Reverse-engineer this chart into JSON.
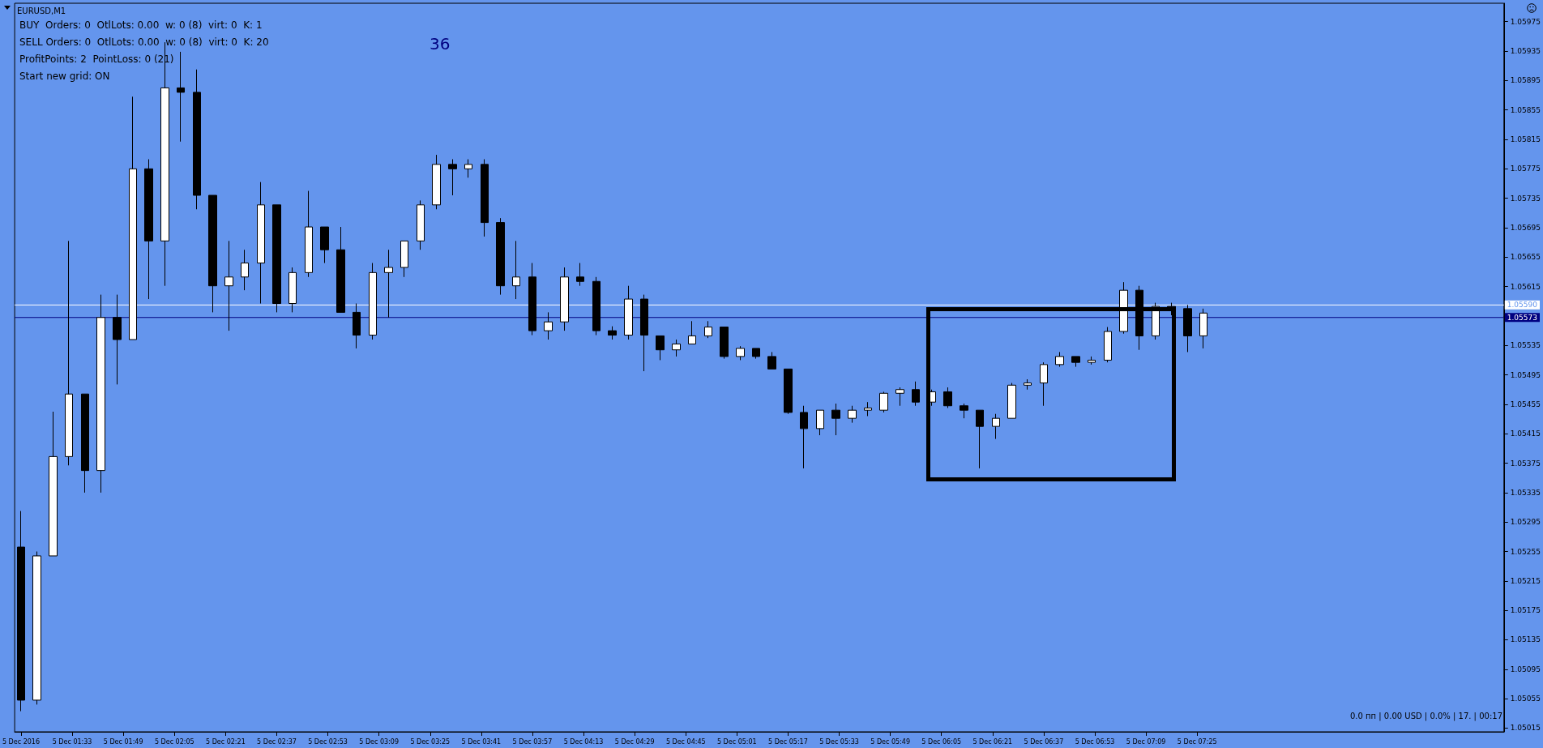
{
  "chart_data": {
    "type": "candlestick",
    "title": "EURUSD,M1",
    "annotations": [
      "BUY  Orders: 0  OtlLots: 0.00  w: 0 (8)  virt: 0  K: 1",
      "SELL Orders: 0  OtlLots: 0.00  w: 0 (8)  virt: 0  K: 20",
      "ProfitPoints: 2  PointLoss: 0 (21)",
      "Start new grid: ON",
      "36",
      "0.0 пп | 0.00 USD | 0.0% | 17. | 00:17"
    ],
    "x": [
      "2016-12-05T01:17",
      "2016-12-05T01:22",
      "2016-12-05T01:27",
      "2016-12-05T01:32",
      "2016-12-05T01:37",
      "2016-12-05T01:42",
      "2016-12-05T01:47",
      "2016-12-05T01:52",
      "2016-12-05T01:57",
      "2016-12-05T02:02",
      "2016-12-05T02:07",
      "2016-12-05T02:12",
      "2016-12-05T02:17",
      "2016-12-05T02:22",
      "2016-12-05T02:27",
      "2016-12-05T02:32",
      "2016-12-05T02:37",
      "2016-12-05T02:42",
      "2016-12-05T02:47",
      "2016-12-05T02:52",
      "2016-12-05T02:57",
      "2016-12-05T03:02",
      "2016-12-05T03:07",
      "2016-12-05T03:12",
      "2016-12-05T03:17",
      "2016-12-05T03:22",
      "2016-12-05T03:27",
      "2016-12-05T03:32",
      "2016-12-05T03:37",
      "2016-12-05T03:42",
      "2016-12-05T03:47",
      "2016-12-05T03:52",
      "2016-12-05T03:57",
      "2016-12-05T04:02",
      "2016-12-05T04:07",
      "2016-12-05T04:12",
      "2016-12-05T04:17",
      "2016-12-05T04:22",
      "2016-12-05T04:27",
      "2016-12-05T04:32",
      "2016-12-05T04:37",
      "2016-12-05T04:42",
      "2016-12-05T04:47",
      "2016-12-05T04:52",
      "2016-12-05T04:57",
      "2016-12-05T05:02",
      "2016-12-05T05:07",
      "2016-12-05T05:12",
      "2016-12-05T05:17",
      "2016-12-05T05:22",
      "2016-12-05T05:27",
      "2016-12-05T05:32",
      "2016-12-05T05:37",
      "2016-12-05T05:42",
      "2016-12-05T05:47",
      "2016-12-05T05:52",
      "2016-12-05T05:57",
      "2016-12-05T06:02",
      "2016-12-05T06:07",
      "2016-12-05T06:12",
      "2016-12-05T06:17",
      "2016-12-05T06:22",
      "2016-12-05T06:27",
      "2016-12-05T06:32",
      "2016-12-05T06:37",
      "2016-12-05T06:42",
      "2016-12-05T06:47",
      "2016-12-05T06:52",
      "2016-12-05T06:57",
      "2016-12-05T07:02",
      "2016-12-05T07:07",
      "2016-12-05T07:12",
      "2016-12-05T07:17",
      "2016-12-05T07:22",
      "2016-12-05T07:27"
    ],
    "series": [
      {
        "color": "#000000",
        "ohlc": [
          [
            1.05261,
            1.0531,
            1.05038,
            1.05053
          ],
          [
            1.05053,
            1.05255,
            1.05047,
            1.05249
          ],
          [
            1.05249,
            1.05445,
            1.05249,
            1.05384
          ],
          [
            1.05384,
            1.05677,
            1.05372,
            1.05469
          ],
          [
            1.05469,
            1.05469,
            1.05335,
            1.05365
          ],
          [
            1.05365,
            1.05604,
            1.05335,
            1.05573
          ],
          [
            1.05573,
            1.05604,
            1.05482,
            1.05543
          ],
          [
            1.05543,
            1.05873,
            1.05543,
            1.05775
          ],
          [
            1.05775,
            1.05788,
            1.05598,
            1.05677
          ],
          [
            1.05677,
            1.05947,
            1.05616,
            1.05885
          ],
          [
            1.05885,
            1.05934,
            1.05812,
            1.05879
          ],
          [
            1.05879,
            1.0591,
            1.0572,
            1.05739
          ],
          [
            1.05739,
            1.05739,
            1.0558,
            1.05616
          ],
          [
            1.05616,
            1.05677,
            1.05555,
            1.05628
          ],
          [
            1.05628,
            1.05665,
            1.0561,
            1.05647
          ],
          [
            1.05647,
            1.05757,
            1.05592,
            1.05726
          ],
          [
            1.05726,
            1.05726,
            1.0558,
            1.05592
          ],
          [
            1.05592,
            1.05641,
            1.0558,
            1.05634
          ],
          [
            1.05634,
            1.05745,
            1.05628,
            1.05696
          ],
          [
            1.05696,
            1.05696,
            1.05647,
            1.05665
          ],
          [
            1.05665,
            1.05696,
            1.0558,
            1.0558
          ],
          [
            1.0558,
            1.05592,
            1.05531,
            1.05549
          ],
          [
            1.05549,
            1.05647,
            1.05543,
            1.05634
          ],
          [
            1.05634,
            1.05665,
            1.05573,
            1.05641
          ],
          [
            1.05641,
            1.05677,
            1.05628,
            1.05677
          ],
          [
            1.05677,
            1.05732,
            1.05665,
            1.05726
          ],
          [
            1.05726,
            1.05794,
            1.0572,
            1.05781
          ],
          [
            1.05781,
            1.05788,
            1.05739,
            1.05775
          ],
          [
            1.05775,
            1.05788,
            1.05763,
            1.05781
          ],
          [
            1.05781,
            1.05788,
            1.05683,
            1.05702
          ],
          [
            1.05702,
            1.05708,
            1.05604,
            1.05616
          ],
          [
            1.05616,
            1.05677,
            1.05598,
            1.05628
          ],
          [
            1.05628,
            1.05647,
            1.05549,
            1.05555
          ],
          [
            1.05555,
            1.0558,
            1.05543,
            1.05567
          ],
          [
            1.05567,
            1.05641,
            1.05555,
            1.05628
          ],
          [
            1.05628,
            1.05647,
            1.05616,
            1.05622
          ],
          [
            1.05622,
            1.05628,
            1.05549,
            1.05555
          ],
          [
            1.05555,
            1.05561,
            1.05543,
            1.05549
          ],
          [
            1.05549,
            1.05616,
            1.05543,
            1.05598
          ],
          [
            1.05598,
            1.05604,
            1.055,
            1.05549
          ],
          [
            1.05548,
            1.05548,
            1.05515,
            1.05529
          ],
          [
            1.05529,
            1.05543,
            1.0552,
            1.05537
          ],
          [
            1.05537,
            1.05568,
            1.05537,
            1.05548
          ],
          [
            1.05548,
            1.05568,
            1.05545,
            1.0556
          ],
          [
            1.0556,
            1.0556,
            1.05517,
            1.0552
          ],
          [
            1.0552,
            1.05534,
            1.05515,
            1.05531
          ],
          [
            1.05531,
            1.05531,
            1.05517,
            1.0552
          ],
          [
            1.0552,
            1.05526,
            1.05503,
            1.05503
          ],
          [
            1.05503,
            1.05503,
            1.05442,
            1.05444
          ],
          [
            1.05444,
            1.05453,
            1.05368,
            1.05422
          ],
          [
            1.05422,
            1.05447,
            1.05413,
            1.05447
          ],
          [
            1.05447,
            1.05456,
            1.05413,
            1.05436
          ],
          [
            1.05436,
            1.05453,
            1.0543,
            1.05447
          ],
          [
            1.05447,
            1.05458,
            1.05439,
            1.0545
          ],
          [
            1.05447,
            1.05472,
            1.05444,
            1.0547
          ],
          [
            1.0547,
            1.05478,
            1.05453,
            1.05475
          ],
          [
            1.05475,
            1.05486,
            1.05453,
            1.05458
          ],
          [
            1.05458,
            1.05475,
            1.05453,
            1.05472
          ],
          [
            1.05472,
            1.05478,
            1.0545,
            1.05453
          ],
          [
            1.05453,
            1.05456,
            1.05436,
            1.05447
          ],
          [
            1.05447,
            1.05447,
            1.05368,
            1.05425
          ],
          [
            1.05425,
            1.05442,
            1.05408,
            1.05436
          ],
          [
            1.05436,
            1.05484,
            1.05436,
            1.05481
          ],
          [
            1.05481,
            1.05489,
            1.05475,
            1.05484
          ],
          [
            1.05484,
            1.05512,
            1.05453,
            1.05509
          ],
          [
            1.05509,
            1.05526,
            1.05506,
            1.0552
          ],
          [
            1.0552,
            1.0552,
            1.05506,
            1.05512
          ],
          [
            1.05512,
            1.0552,
            1.05509,
            1.05515
          ],
          [
            1.05515,
            1.0556,
            1.05512,
            1.05554
          ],
          [
            1.05554,
            1.05621,
            1.05551,
            1.0561
          ],
          [
            1.0561,
            1.05616,
            1.05529,
            1.05548
          ],
          [
            1.05548,
            1.05593,
            1.05543,
            1.05588
          ],
          [
            1.05588,
            1.05593,
            1.05576,
            1.05585
          ],
          [
            1.05585,
            1.0559,
            1.05526,
            1.05548
          ],
          [
            1.05548,
            1.05585,
            1.05531,
            1.05579
          ]
        ]
      }
    ],
    "xlim": [
      "2016-12-05T01:15",
      "2016-12-05T09:01"
    ],
    "xticks": [
      {
        "value": "2016-12-05T01:17",
        "label": "5 Dec 2016"
      },
      {
        "value": "2016-12-05T01:33",
        "label": "5 Dec 01:33"
      },
      {
        "value": "2016-12-05T01:49",
        "label": "5 Dec 01:49"
      },
      {
        "value": "2016-12-05T02:05",
        "label": "5 Dec 02:05"
      },
      {
        "value": "2016-12-05T02:21",
        "label": "5 Dec 02:21"
      },
      {
        "value": "2016-12-05T02:37",
        "label": "5 Dec 02:37"
      },
      {
        "value": "2016-12-05T02:53",
        "label": "5 Dec 02:53"
      },
      {
        "value": "2016-12-05T03:09",
        "label": "5 Dec 03:09"
      },
      {
        "value": "2016-12-05T03:25",
        "label": "5 Dec 03:25"
      },
      {
        "value": "2016-12-05T03:41",
        "label": "5 Dec 03:41"
      },
      {
        "value": "2016-12-05T03:57",
        "label": "5 Dec 03:57"
      },
      {
        "value": "2016-12-05T04:13",
        "label": "5 Dec 04:13"
      },
      {
        "value": "2016-12-05T04:29",
        "label": "5 Dec 04:29"
      },
      {
        "value": "2016-12-05T04:45",
        "label": "5 Dec 04:45"
      },
      {
        "value": "2016-12-05T05:01",
        "label": "5 Dec 05:01"
      },
      {
        "value": "2016-12-05T05:17",
        "label": "5 Dec 05:17"
      },
      {
        "value": "2016-12-05T05:33",
        "label": "5 Dec 05:33"
      },
      {
        "value": "2016-12-05T05:49",
        "label": "5 Dec 05:49"
      },
      {
        "value": "2016-12-05T06:05",
        "label": "5 Dec 06:05"
      },
      {
        "value": "2016-12-05T06:21",
        "label": "5 Dec 06:21"
      },
      {
        "value": "2016-12-05T06:37",
        "label": "5 Dec 06:37"
      },
      {
        "value": "2016-12-05T06:53",
        "label": "5 Dec 06:53"
      },
      {
        "value": "2016-12-05T07:09",
        "label": "5 Dec 07:09"
      },
      {
        "value": "2016-12-05T07:25",
        "label": "5 Dec 07:25"
      }
    ],
    "ylim": [
      1.0501,
      1.06
    ],
    "yticks": [
      1.05015,
      1.05055,
      1.05095,
      1.05135,
      1.05175,
      1.05215,
      1.05255,
      1.05295,
      1.05335,
      1.05375,
      1.05415,
      1.05455,
      1.05495,
      1.05535,
      {
        "value": 1.05575,
        "label": null
      },
      1.05615,
      1.05655,
      1.05695,
      1.05735,
      1.05775,
      1.05815,
      1.05855,
      1.05895,
      1.05935,
      1.05975
    ],
    "ref_lines": [
      {
        "axis": "y",
        "value": 1.0559,
        "label": "1.05590",
        "color": "#ffffff"
      },
      {
        "axis": "y",
        "value": 1.05573,
        "label": "1.05573",
        "color": "#000080"
      }
    ],
    "grid": false
  }
}
